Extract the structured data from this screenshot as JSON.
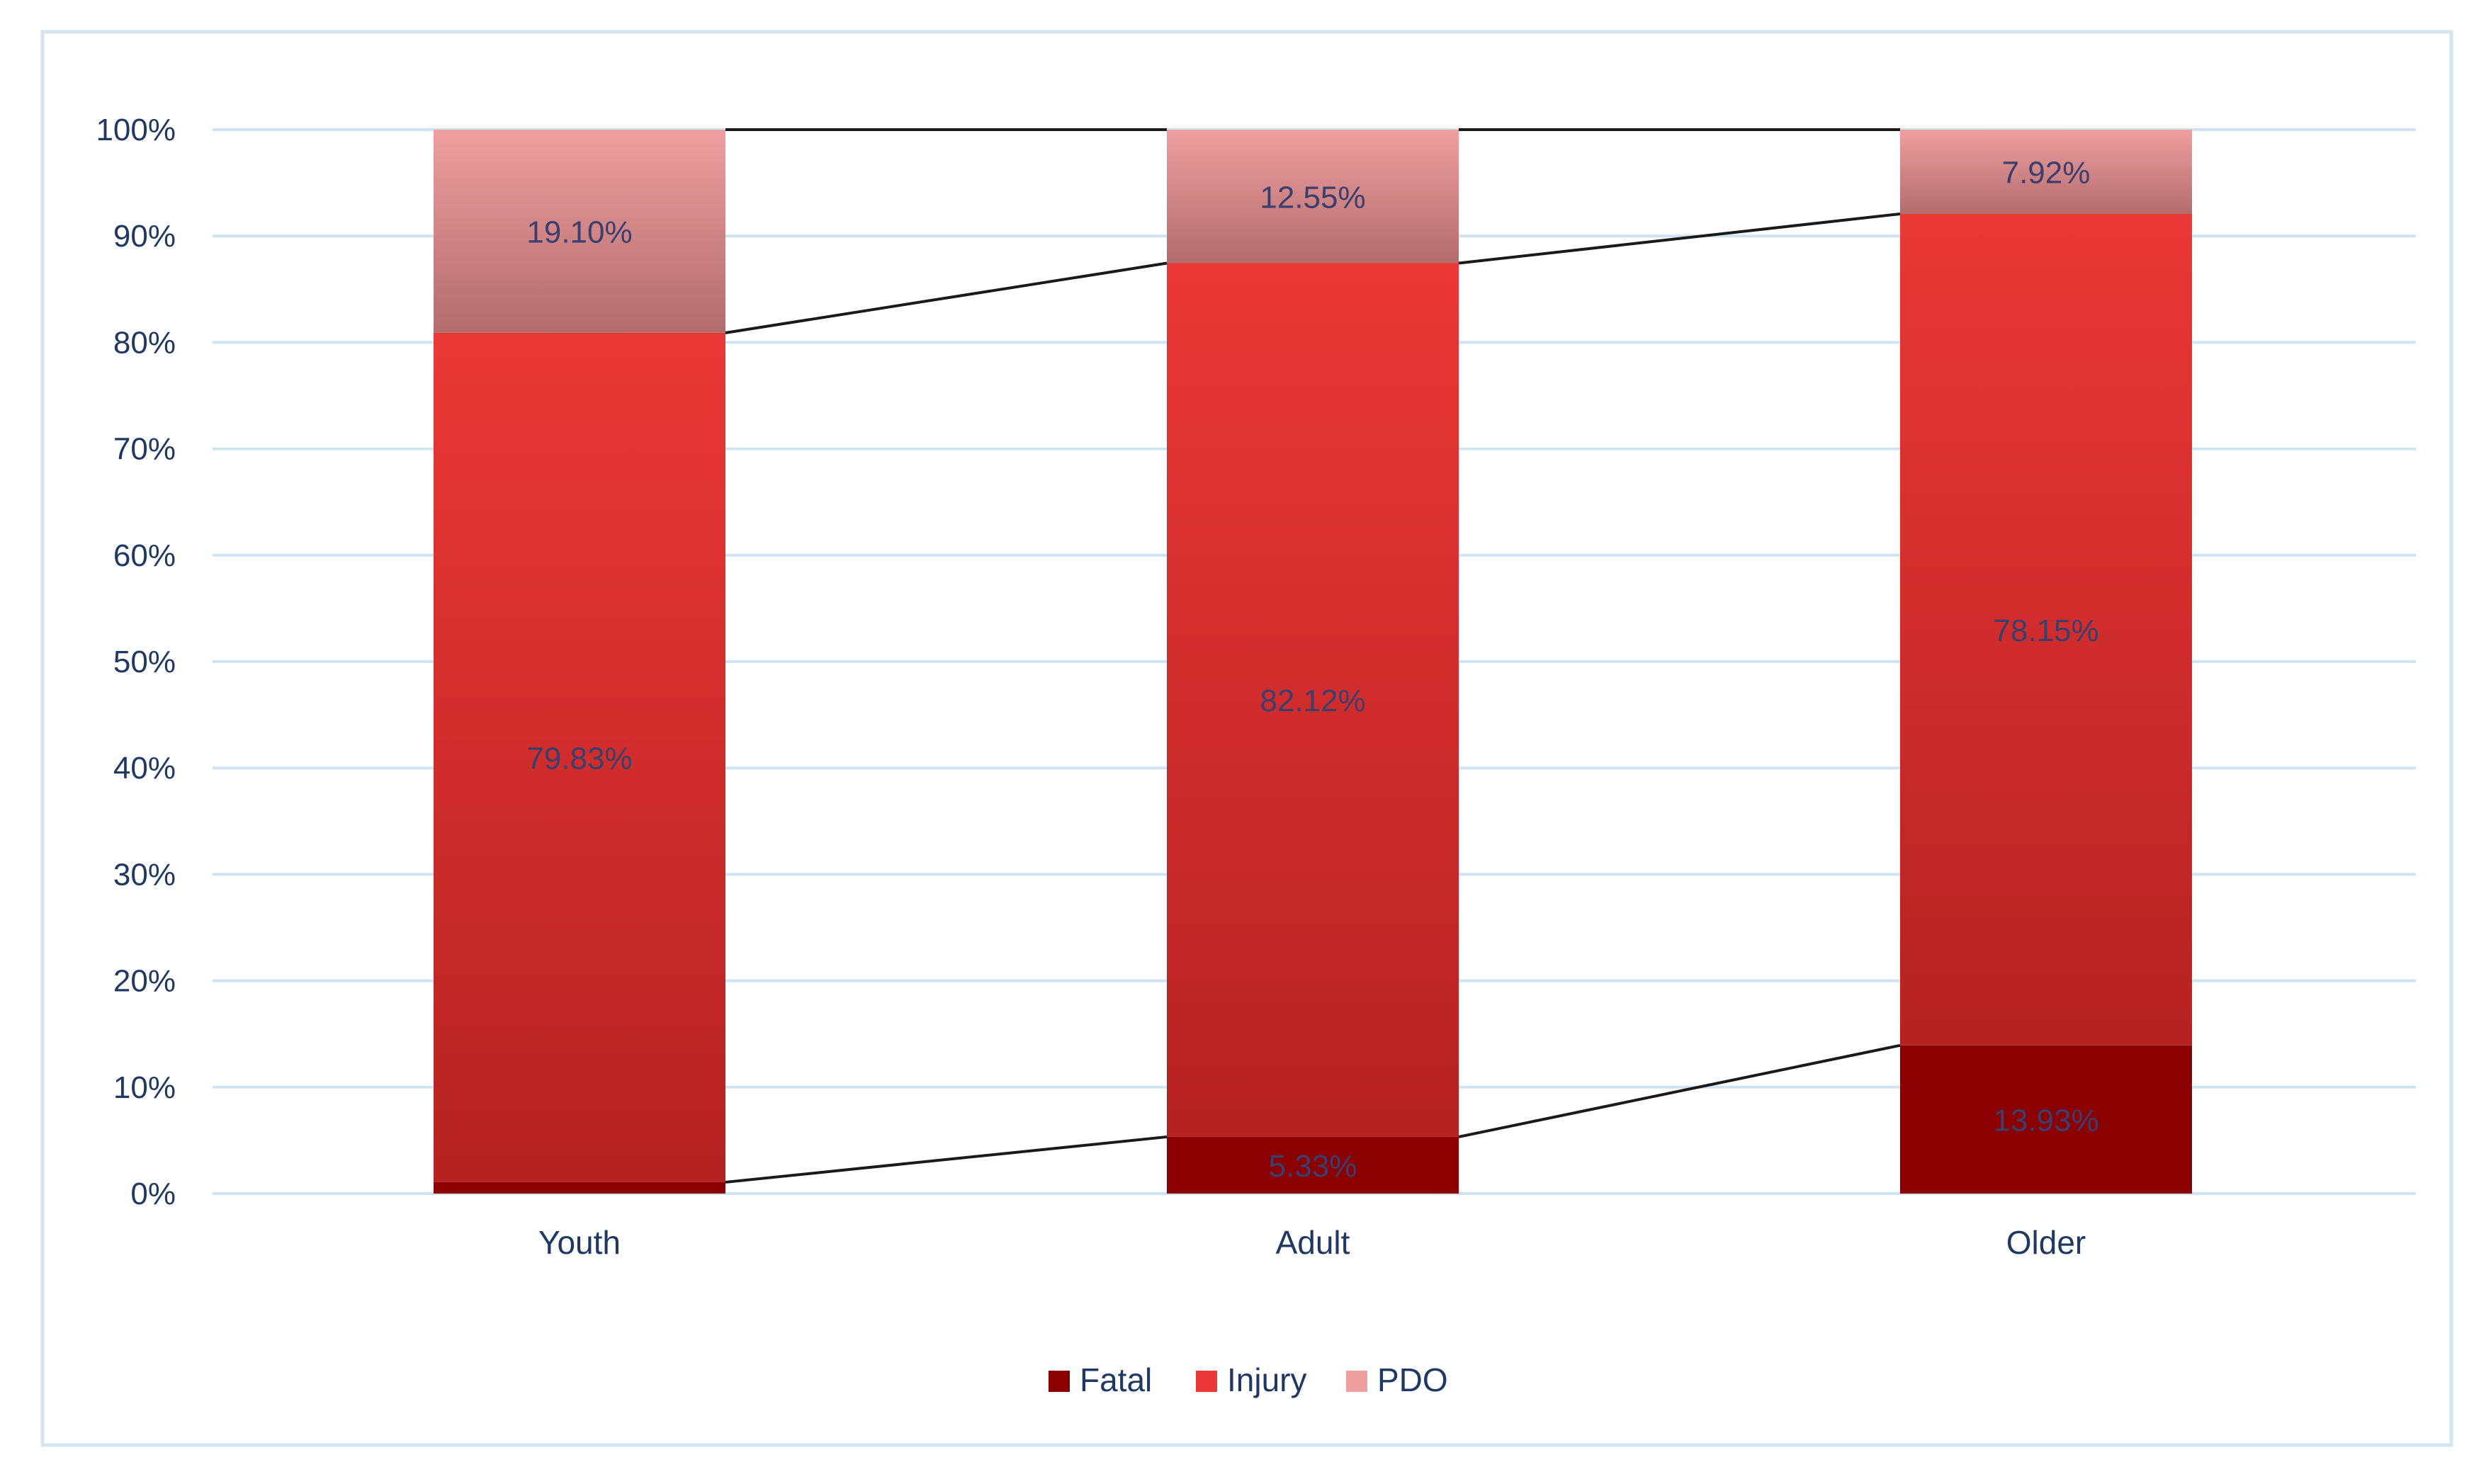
{
  "chart_data": {
    "type": "bar",
    "stacked": true,
    "percent_stacked": true,
    "categories": [
      "Youth",
      "Adult",
      "Older"
    ],
    "series": [
      {
        "name": "Fatal",
        "color": "#8b0000",
        "values": [
          1.07,
          5.33,
          13.93
        ],
        "labels": [
          "",
          "5.33%",
          "13.93%"
        ]
      },
      {
        "name": "Injury",
        "color": "#e53935",
        "values": [
          79.83,
          82.12,
          78.15
        ],
        "labels": [
          "79.83%",
          "82.12%",
          "78.15%"
        ]
      },
      {
        "name": "PDO",
        "color": "#e89a9b",
        "values": [
          19.1,
          12.55,
          7.92
        ],
        "labels": [
          "19.10%",
          "12.55%",
          "7.92%"
        ]
      }
    ],
    "yticks": [
      "0%",
      "10%",
      "20%",
      "30%",
      "40%",
      "50%",
      "60%",
      "70%",
      "80%",
      "90%",
      "100%"
    ],
    "ylim": [
      0,
      100
    ],
    "series_lines": true,
    "grid": true,
    "legend_position": "bottom",
    "colors": {
      "grid": "#cfe3f3",
      "axis_text": "#1f3864",
      "data_label": "#3a3f6e",
      "frame": "#d6e4f0",
      "series_line": "#1a1a1a"
    }
  }
}
